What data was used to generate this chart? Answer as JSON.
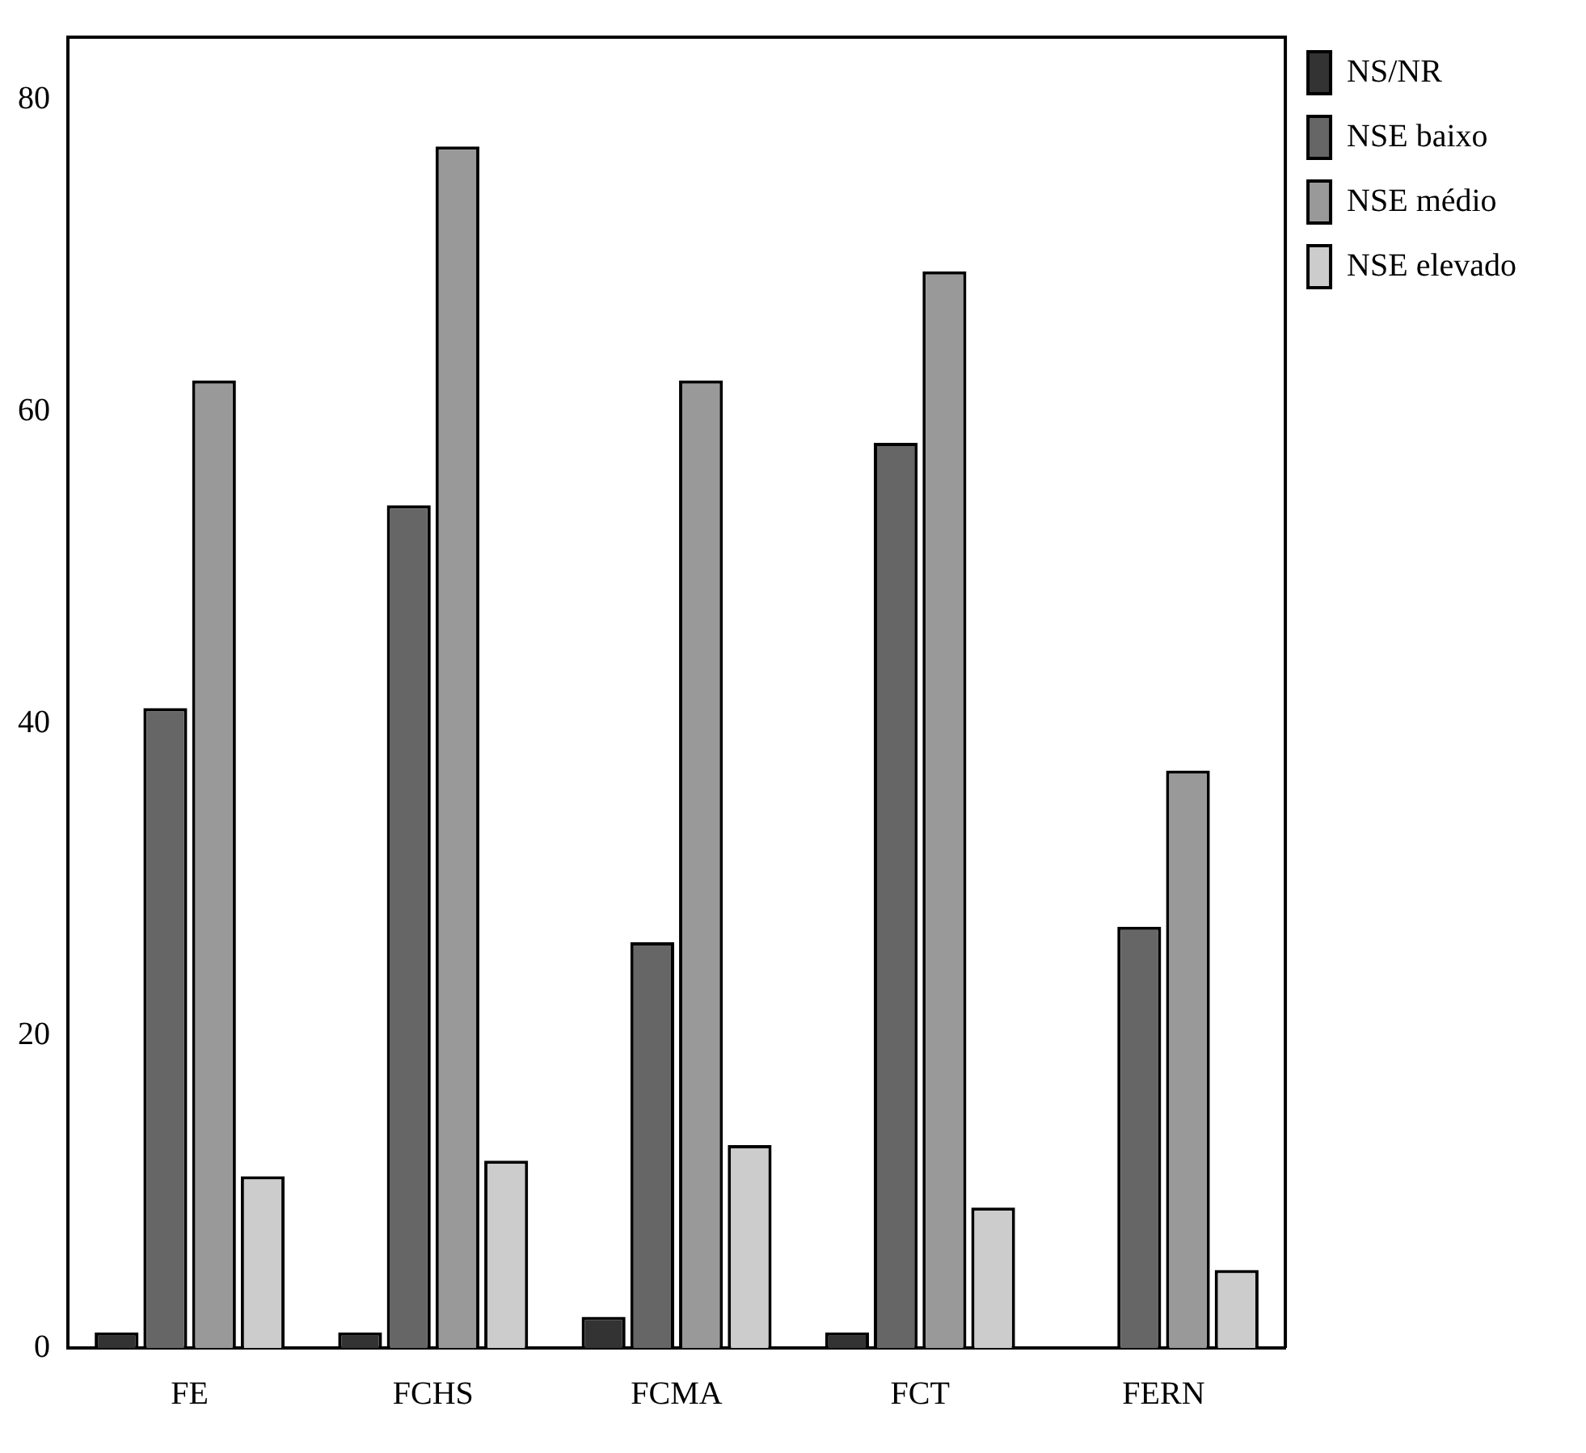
{
  "chart_data": {
    "type": "bar",
    "categories": [
      "FE",
      "FCHS",
      "FCMA",
      "FCT",
      "FERN"
    ],
    "series": [
      {
        "name": "NS/NR",
        "color": "#333333",
        "values": [
          1,
          1,
          2,
          1,
          0
        ]
      },
      {
        "name": "NSE baixo",
        "color": "#666666",
        "values": [
          41,
          54,
          26,
          58,
          27
        ]
      },
      {
        "name": "NSE médio",
        "color": "#999999",
        "values": [
          62,
          77,
          62,
          69,
          37
        ]
      },
      {
        "name": "NSE elevado",
        "color": "#cccccc",
        "values": [
          11,
          12,
          13,
          9,
          5
        ]
      }
    ],
    "ylim": [
      0,
      84
    ],
    "yticks": [
      0,
      20,
      40,
      60,
      80
    ],
    "grid": false,
    "legend": "top right"
  }
}
